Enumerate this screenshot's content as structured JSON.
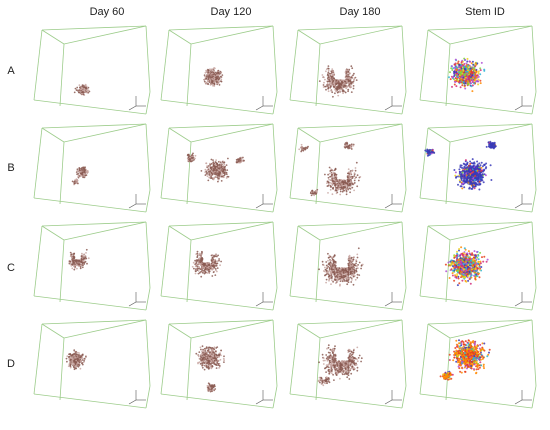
{
  "figure": {
    "columns": [
      {
        "id": "day60",
        "label": "Day 60"
      },
      {
        "id": "day120",
        "label": "Day 120"
      },
      {
        "id": "day180",
        "label": "Day 180"
      },
      {
        "id": "stemid",
        "label": "Stem ID"
      }
    ],
    "rows": [
      {
        "id": "A",
        "label": "A"
      },
      {
        "id": "B",
        "label": "B"
      },
      {
        "id": "C",
        "label": "C"
      },
      {
        "id": "D",
        "label": "D"
      }
    ],
    "colors": {
      "box_lines": "#9ccc8a",
      "cell_brown": "#8a5a52",
      "cell_light": "#c9a8a3",
      "stem_palette": [
        "#3a3ab8",
        "#e8401c",
        "#ff8a00",
        "#7fd43a",
        "#b14fd6",
        "#2fb4d8",
        "#d42e7a",
        "#f2d21b"
      ]
    }
  }
}
